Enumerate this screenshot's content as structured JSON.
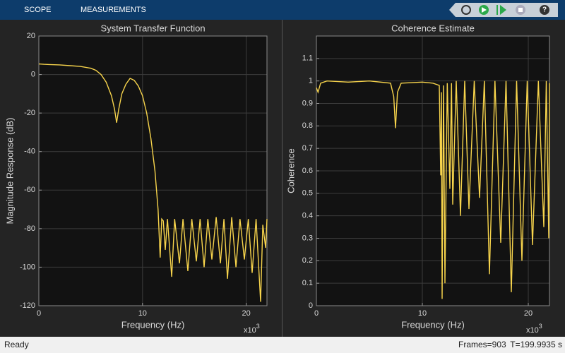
{
  "toolbar": {
    "tabs": [
      "SCOPE",
      "MEASUREMENTS"
    ]
  },
  "status": {
    "left": "Ready",
    "right": [
      "Frames=903",
      "T=199.9935 s"
    ]
  },
  "chart_data": [
    {
      "type": "line",
      "title": "System Transfer Function",
      "x_label": "Frequency (Hz)",
      "y_label": "Magnitude Response (dB)",
      "x_exponent": {
        "base": "x10",
        "power": "3"
      },
      "color": "#f7d44c",
      "grid": true,
      "xlim": [
        0,
        22
      ],
      "xticks": [
        0,
        10,
        20
      ],
      "ylim": [
        -120,
        20
      ],
      "yticks": [
        -120,
        -100,
        -80,
        -60,
        -40,
        -20,
        0,
        20
      ],
      "x": [
        0,
        0.5,
        1,
        2,
        3,
        4,
        5,
        5.5,
        6,
        6.5,
        7,
        7.3,
        7.5,
        7.7,
        8,
        8.4,
        8.8,
        9.2,
        9.6,
        10,
        10.4,
        10.8,
        11.2,
        11.5,
        11.7,
        11.85,
        12.0,
        12.19,
        12.4,
        12.81,
        13.1,
        13.56,
        13.9,
        14.37,
        14.75,
        15.19,
        15.55,
        15.94,
        16.3,
        16.69,
        17.1,
        17.51,
        17.85,
        18.19,
        18.6,
        19.01,
        19.4,
        19.82,
        20.2,
        20.57,
        20.95,
        21.39,
        21.6,
        21.87,
        22
      ],
      "values": [
        5.5,
        5.3,
        5.2,
        5,
        4.6,
        4.2,
        3.3,
        2.2,
        0,
        -4,
        -11,
        -18,
        -25,
        -18,
        -10,
        -5,
        -2,
        -3,
        -6,
        -11,
        -20,
        -33,
        -50,
        -70,
        -95,
        -75,
        -76,
        -91,
        -75,
        -105,
        -75,
        -98,
        -75,
        -102,
        -75,
        -97,
        -75,
        -100,
        -75,
        -96,
        -74,
        -98,
        -75,
        -106,
        -74,
        -100,
        -75,
        -96,
        -75,
        -103,
        -75,
        -118,
        -78,
        -90,
        -75
      ]
    },
    {
      "type": "line",
      "title": "Coherence Estimate",
      "x_label": "Frequency (Hz)",
      "y_label": "Coherence",
      "x_exponent": {
        "base": "x10",
        "power": "3"
      },
      "color": "#f7d44c",
      "grid": true,
      "xlim": [
        0,
        22
      ],
      "xticks": [
        0,
        10,
        20
      ],
      "ylim": [
        0,
        1.2
      ],
      "yticks": [
        0,
        0.1,
        0.2,
        0.3,
        0.4,
        0.5,
        0.6,
        0.7,
        0.8,
        0.9,
        1,
        1.1
      ],
      "x": [
        0,
        0.15,
        0.4,
        1,
        3,
        5,
        7,
        7.3,
        7.47,
        7.65,
        8,
        10,
        11,
        11.6,
        11.73,
        11.8,
        11.87,
        12.0,
        12.13,
        12.35,
        12.6,
        12.75,
        12.87,
        13.2,
        13.6,
        14.0,
        14.4,
        14.9,
        15.4,
        15.85,
        16.33,
        16.85,
        17.4,
        17.9,
        18.4,
        18.9,
        19.4,
        19.9,
        20.4,
        20.95,
        21.47,
        21.7,
        21.93,
        22
      ],
      "values": [
        0.97,
        0.95,
        0.99,
        1,
        0.995,
        1,
        0.99,
        0.93,
        0.79,
        0.95,
        0.99,
        0.995,
        0.99,
        0.98,
        0.58,
        0.95,
        0.03,
        0.98,
        0.1,
        0.99,
        0.52,
        0.99,
        0.45,
        1,
        0.4,
        1,
        0.43,
        1,
        0.48,
        1,
        0.14,
        1,
        0.28,
        1,
        0.06,
        1,
        0.2,
        1,
        0.27,
        1,
        0.35,
        1,
        0.3,
        0.99
      ]
    }
  ]
}
